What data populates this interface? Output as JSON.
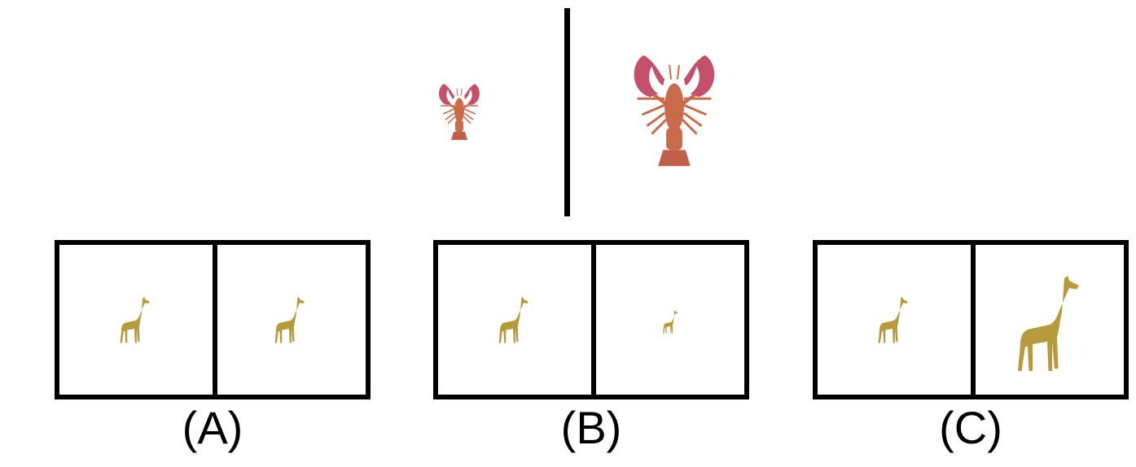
{
  "colors": {
    "lobster_body": "#c96a4a",
    "lobster_claw": "#c4506b",
    "giraffe": "#b79a3c",
    "line": "#000000"
  },
  "prompt": {
    "left_object": "small-lobster",
    "right_object": "large-lobster"
  },
  "options": [
    {
      "label": "(A)",
      "left": "giraffe-small",
      "right": "giraffe-small"
    },
    {
      "label": "(B)",
      "left": "giraffe-small",
      "right": "giraffe-tiny"
    },
    {
      "label": "(C)",
      "left": "giraffe-small",
      "right": "giraffe-large"
    }
  ]
}
